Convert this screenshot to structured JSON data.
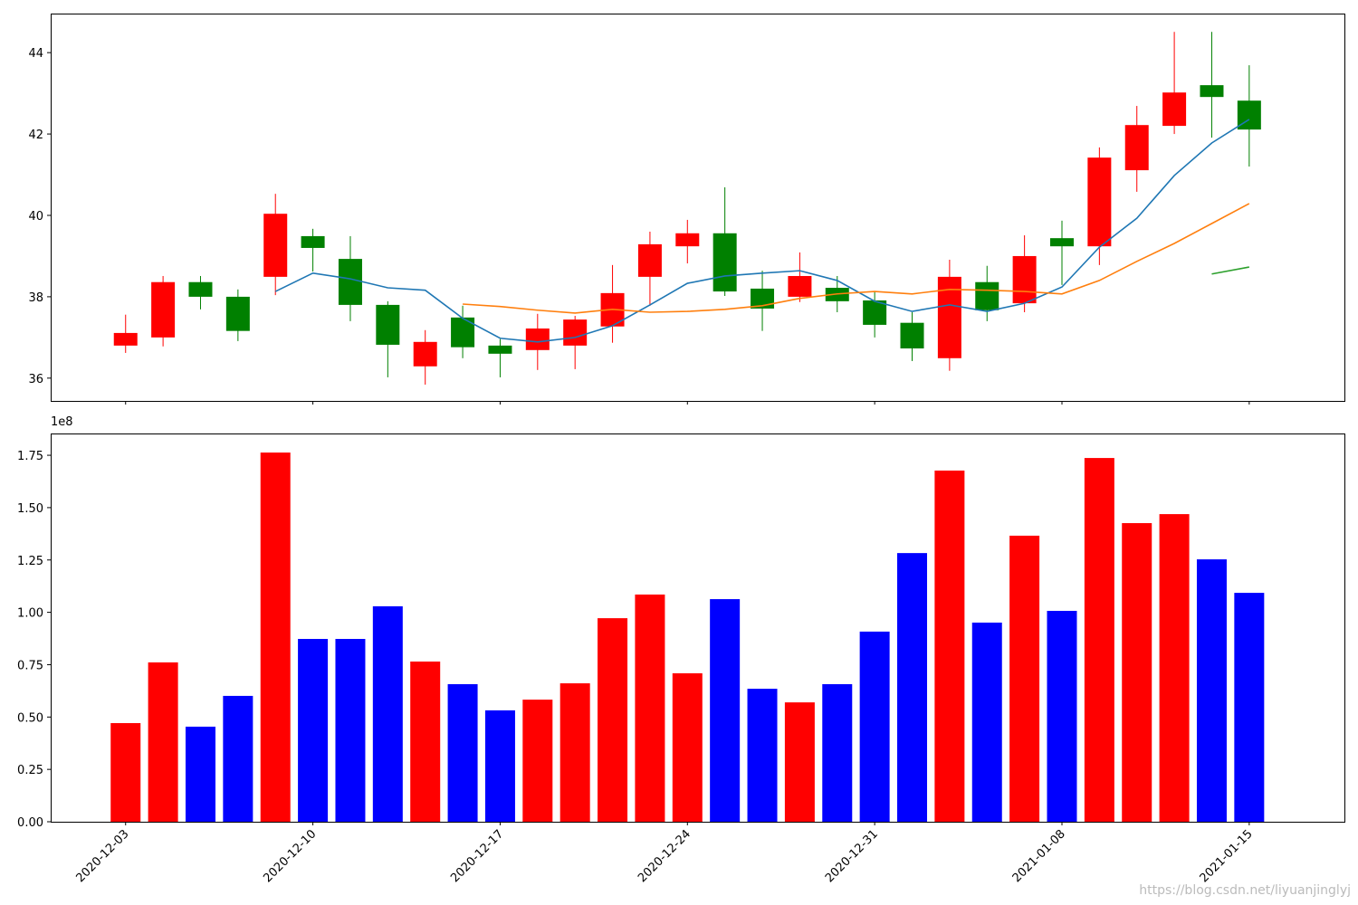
{
  "chart_data": [
    {
      "type": "candlestick",
      "open": [
        36.8,
        37.0,
        38.36,
        38.0,
        38.49,
        39.49,
        38.93,
        37.8,
        36.29,
        37.49,
        36.8,
        36.69,
        36.8,
        37.27,
        38.49,
        39.24,
        39.56,
        38.2,
        38.0,
        38.22,
        37.91,
        37.36,
        36.49,
        38.36,
        37.84,
        39.44,
        39.24,
        41.11,
        42.2,
        43.2,
        42.82
      ],
      "high": [
        37.56,
        38.51,
        38.51,
        38.18,
        40.53,
        39.67,
        39.49,
        37.89,
        37.18,
        37.78,
        36.96,
        37.58,
        37.53,
        38.78,
        39.6,
        39.89,
        40.69,
        38.64,
        39.09,
        38.51,
        38.13,
        37.62,
        38.91,
        38.76,
        39.51,
        39.87,
        41.67,
        42.69,
        44.51,
        44.51,
        43.69
      ],
      "low": [
        36.62,
        36.78,
        37.69,
        36.91,
        38.04,
        38.62,
        37.4,
        36.02,
        35.84,
        36.49,
        36.02,
        36.2,
        36.22,
        36.87,
        37.78,
        38.82,
        38.02,
        37.16,
        37.87,
        37.62,
        37.0,
        36.42,
        36.18,
        37.4,
        37.62,
        38.29,
        38.78,
        40.58,
        42.0,
        41.91,
        41.2
      ],
      "close": [
        37.11,
        38.36,
        38.0,
        37.16,
        40.04,
        39.2,
        37.8,
        36.82,
        36.89,
        36.76,
        36.6,
        37.22,
        37.44,
        38.09,
        39.29,
        39.56,
        38.13,
        37.71,
        38.51,
        37.89,
        37.31,
        36.73,
        38.49,
        37.67,
        39.0,
        39.24,
        41.42,
        42.22,
        43.02,
        42.91,
        42.11
      ],
      "up_color": "#ff0000",
      "down_color": "#008000",
      "series": [
        {
          "color": "#1f77b4",
          "values": [
            null,
            null,
            null,
            null,
            38.13,
            38.58,
            38.44,
            38.22,
            38.16,
            37.47,
            36.98,
            36.89,
            37.0,
            37.29,
            37.8,
            38.33,
            38.51,
            38.58,
            38.64,
            38.4,
            37.89,
            37.64,
            37.8,
            37.64,
            37.84,
            38.24,
            39.22,
            39.93,
            40.98,
            41.78,
            42.36
          ]
        },
        {
          "color": "#ff7f0e",
          "values": [
            null,
            null,
            null,
            null,
            null,
            null,
            null,
            null,
            null,
            37.82,
            37.76,
            37.67,
            37.6,
            37.69,
            37.62,
            37.64,
            37.69,
            37.78,
            37.96,
            38.07,
            38.13,
            38.07,
            38.18,
            38.16,
            38.13,
            38.07,
            38.4,
            38.87,
            39.31,
            39.8,
            40.29
          ]
        },
        {
          "color": "#2ca02c",
          "values": [
            null,
            null,
            null,
            null,
            null,
            null,
            null,
            null,
            null,
            null,
            null,
            null,
            null,
            null,
            null,
            null,
            null,
            null,
            null,
            null,
            null,
            null,
            null,
            null,
            null,
            null,
            null,
            null,
            null,
            38.56,
            38.73
          ]
        }
      ],
      "ylim": [
        35.44,
        44.96
      ],
      "yticks": [
        36,
        38,
        40,
        42,
        44
      ]
    },
    {
      "type": "bar",
      "categories": [
        "2020-12-03",
        null,
        null,
        null,
        null,
        "2020-12-10",
        null,
        null,
        null,
        null,
        "2020-12-17",
        null,
        null,
        null,
        null,
        "2020-12-24",
        null,
        null,
        null,
        null,
        "2020-12-31",
        null,
        null,
        null,
        null,
        "2021-01-08",
        null,
        null,
        null,
        null,
        "2021-01-15"
      ],
      "values": [
        0.471,
        0.761,
        0.454,
        0.601,
        1.763,
        0.873,
        0.873,
        1.029,
        0.765,
        0.657,
        0.532,
        0.583,
        0.661,
        0.972,
        1.085,
        0.709,
        1.063,
        0.635,
        0.57,
        0.657,
        0.908,
        1.283,
        1.677,
        0.951,
        1.366,
        1.007,
        1.737,
        1.426,
        1.469,
        1.253,
        1.093
      ],
      "up_color": "#ff0000",
      "down_color": "#0000ff",
      "ylim": [
        0,
        1.854
      ],
      "yticks": [
        {
          "value": 0,
          "label": "0.00"
        },
        {
          "value": 0.25,
          "label": "0.25"
        },
        {
          "value": 0.5,
          "label": "0.50"
        },
        {
          "value": 0.75,
          "label": "0.75"
        },
        {
          "value": 1,
          "label": "1.00"
        },
        {
          "value": 1.25,
          "label": "1.25"
        },
        {
          "value": 1.5,
          "label": "1.50"
        },
        {
          "value": 1.75,
          "label": "1.75"
        }
      ],
      "y_offset_label": "1e8"
    }
  ],
  "watermark": "https://blog.csdn.net/liyuanjinglyj"
}
